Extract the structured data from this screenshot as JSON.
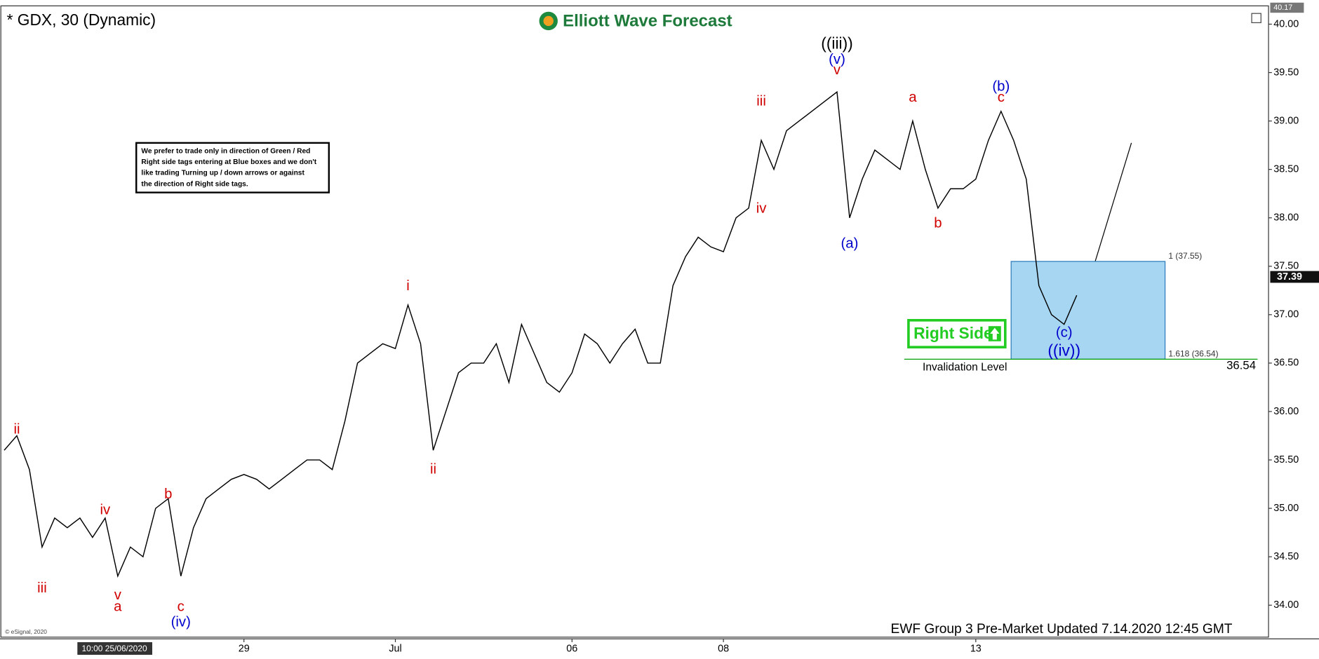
{
  "chart_data": {
    "type": "line",
    "title": "* GDX, 30 (Dynamic)",
    "brand": "Elliott Wave Forecast",
    "footer": "EWF Group 3 Pre-Market Updated 7.14.2020 12:45 GMT",
    "copyright": "© eSignal, 2020",
    "cursor_date": "10:00 25/06/2020",
    "note": [
      "We prefer to trade only in direction of Green / Red",
      "Right side tags entering at Blue boxes and we don't",
      "like trading Turning up / down arrows or against",
      "the direction of Right side tags."
    ],
    "tag": "Right Side",
    "color": "#000000",
    "categories": [
      null,
      null,
      null,
      null,
      null,
      null,
      null,
      null,
      null,
      null,
      null,
      null,
      null,
      null,
      null,
      null,
      null,
      null,
      null,
      "29",
      null,
      null,
      null,
      null,
      null,
      null,
      null,
      null,
      null,
      null,
      null,
      "Jul",
      null,
      null,
      null,
      null,
      null,
      null,
      null,
      null,
      null,
      null,
      null,
      null,
      null,
      "06",
      null,
      null,
      null,
      null,
      null,
      null,
      null,
      null,
      null,
      null,
      null,
      "08",
      null,
      null,
      null,
      null,
      null,
      null,
      null,
      null,
      null,
      null,
      null,
      null,
      null,
      null,
      null,
      null,
      null,
      null,
      null,
      "13",
      null,
      null,
      null,
      null,
      null,
      null,
      null,
      null
    ],
    "values": [
      35.6,
      35.75,
      35.4,
      34.6,
      34.9,
      34.8,
      34.9,
      34.7,
      34.9,
      34.3,
      34.6,
      34.5,
      35.0,
      35.1,
      34.3,
      34.8,
      35.1,
      35.2,
      35.3,
      35.35,
      35.3,
      35.2,
      35.3,
      35.4,
      35.5,
      35.5,
      35.4,
      35.9,
      36.5,
      36.6,
      36.7,
      36.65,
      37.1,
      36.7,
      35.6,
      36.0,
      36.4,
      36.5,
      36.5,
      36.7,
      36.3,
      36.9,
      36.6,
      36.3,
      36.2,
      36.4,
      36.8,
      36.7,
      36.5,
      36.7,
      36.85,
      36.5,
      36.5,
      37.3,
      37.6,
      37.8,
      37.7,
      37.65,
      38.0,
      38.1,
      38.8,
      38.5,
      38.9,
      39.0,
      39.1,
      39.2,
      39.3,
      38.0,
      38.4,
      38.7,
      38.6,
      38.5,
      39.0,
      38.5,
      38.1,
      38.3,
      38.3,
      38.4,
      38.8,
      39.1,
      38.8,
      38.4,
      37.3,
      37.0,
      36.9,
      37.2
    ],
    "ylim": [
      33.67,
      40.18
    ],
    "yticks": [
      {
        "value": 34,
        "label": "34.00"
      },
      {
        "value": 34.5,
        "label": "34.50"
      },
      {
        "value": 35,
        "label": "35.00"
      },
      {
        "value": 35.5,
        "label": "35.50"
      },
      {
        "value": 36,
        "label": "36.00"
      },
      {
        "value": 36.5,
        "label": "36.50"
      },
      {
        "value": 37,
        "label": "37.00"
      },
      {
        "value": 37.5,
        "label": "37.50"
      },
      {
        "value": 38,
        "label": "38.00"
      },
      {
        "value": 38.5,
        "label": "38.50"
      },
      {
        "value": 39,
        "label": "39.00"
      },
      {
        "value": 39.5,
        "label": "39.50"
      },
      {
        "value": 40,
        "label": "40.00"
      }
    ],
    "last_price": 37.39,
    "high_tag": 40.17,
    "target_box": {
      "top": 37.55,
      "bottom": 36.54,
      "color": "#a6d6f2",
      "top_label": "1 (37.55)",
      "bottom_label": "1.618 (36.54)"
    },
    "invalidation": {
      "label": "Invalidation Level",
      "value": 36.54,
      "color": "#00a000"
    },
    "annotations": [
      {
        "text": "ii",
        "color": "#d00000",
        "index": 1,
        "value": 35.81
      },
      {
        "text": "iii",
        "color": "#d00000",
        "index": 3,
        "value": 34.17
      },
      {
        "text": "iv",
        "color": "#d00000",
        "index": 8,
        "value": 34.98
      },
      {
        "text": "v",
        "color": "#d00000",
        "index": 9,
        "value": 34.1
      },
      {
        "text": "a",
        "color": "#d00000",
        "index": 9,
        "value": 33.98
      },
      {
        "text": "b",
        "color": "#d00000",
        "index": 13,
        "value": 35.14
      },
      {
        "text": "c",
        "color": "#d00000",
        "index": 14,
        "value": 33.98
      },
      {
        "text": "(iv)",
        "color": "#0000cc",
        "index": 14,
        "value": 33.82
      },
      {
        "text": "i",
        "color": "#d00000",
        "index": 32,
        "value": 37.29
      },
      {
        "text": "ii",
        "color": "#d00000",
        "index": 34,
        "value": 35.4
      },
      {
        "text": "iii",
        "color": "#d00000",
        "index": 60,
        "value": 39.2
      },
      {
        "text": "iv",
        "color": "#d00000",
        "index": 60,
        "value": 38.09
      },
      {
        "text": "v",
        "color": "#d00000",
        "index": 66,
        "value": 39.52
      },
      {
        "text": "(v)",
        "color": "#0000cc",
        "index": 66,
        "value": 39.63
      },
      {
        "text": "((iii))",
        "color": "#000000",
        "index": 66,
        "value": 39.79
      },
      {
        "text": "(a)",
        "color": "#0000cc",
        "index": 67,
        "value": 37.73
      },
      {
        "text": "a",
        "color": "#d00000",
        "index": 72,
        "value": 39.24
      },
      {
        "text": "b",
        "color": "#d00000",
        "index": 74,
        "value": 37.94
      },
      {
        "text": "c",
        "color": "#d00000",
        "index": 79,
        "value": 39.24
      },
      {
        "text": "(b)",
        "color": "#0000cc",
        "index": 79,
        "value": 39.35
      },
      {
        "text": "(c)",
        "color": "#0000cc",
        "index": 84,
        "value": 36.81
      },
      {
        "text": "((iv))",
        "color": "#0000cc",
        "index": 84,
        "value": 36.62
      }
    ]
  }
}
